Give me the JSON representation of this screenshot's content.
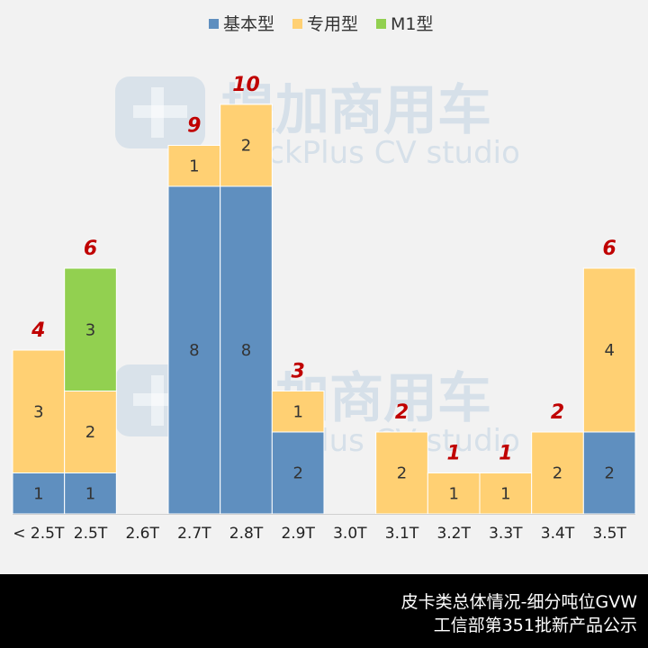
{
  "chart_data": {
    "type": "stacked-bar",
    "categories": [
      "< 2.5T",
      "2.5T",
      "2.6T",
      "2.7T",
      "2.8T",
      "2.9T",
      "3.0T",
      "3.1T",
      "3.2T",
      "3.3T",
      "3.4T",
      "3.5T"
    ],
    "series": [
      {
        "name": "基本型",
        "color": "#5f8fbf",
        "values": [
          1,
          1,
          0,
          8,
          8,
          2,
          0,
          0,
          0,
          0,
          0,
          2
        ]
      },
      {
        "name": "专用型",
        "color": "#ffd073",
        "values": [
          3,
          2,
          0,
          1,
          2,
          1,
          0,
          2,
          1,
          1,
          2,
          4
        ]
      },
      {
        "name": "M1型",
        "color": "#92d050",
        "values": [
          0,
          3,
          0,
          0,
          0,
          0,
          0,
          0,
          0,
          0,
          0,
          0
        ]
      }
    ],
    "totals": [
      4,
      6,
      null,
      9,
      10,
      3,
      null,
      2,
      1,
      1,
      2,
      6
    ],
    "ylim": [
      0,
      11
    ],
    "legend": "top",
    "grid": false
  },
  "watermark": {
    "cn": "提加商用车",
    "en": "TruckPlus CV studio",
    "icon": "truckplus-logo-icon"
  },
  "footer": {
    "line1": "皮卡类总体情况-细分吨位GVW",
    "line2": "工信部第351批新产品公示"
  }
}
